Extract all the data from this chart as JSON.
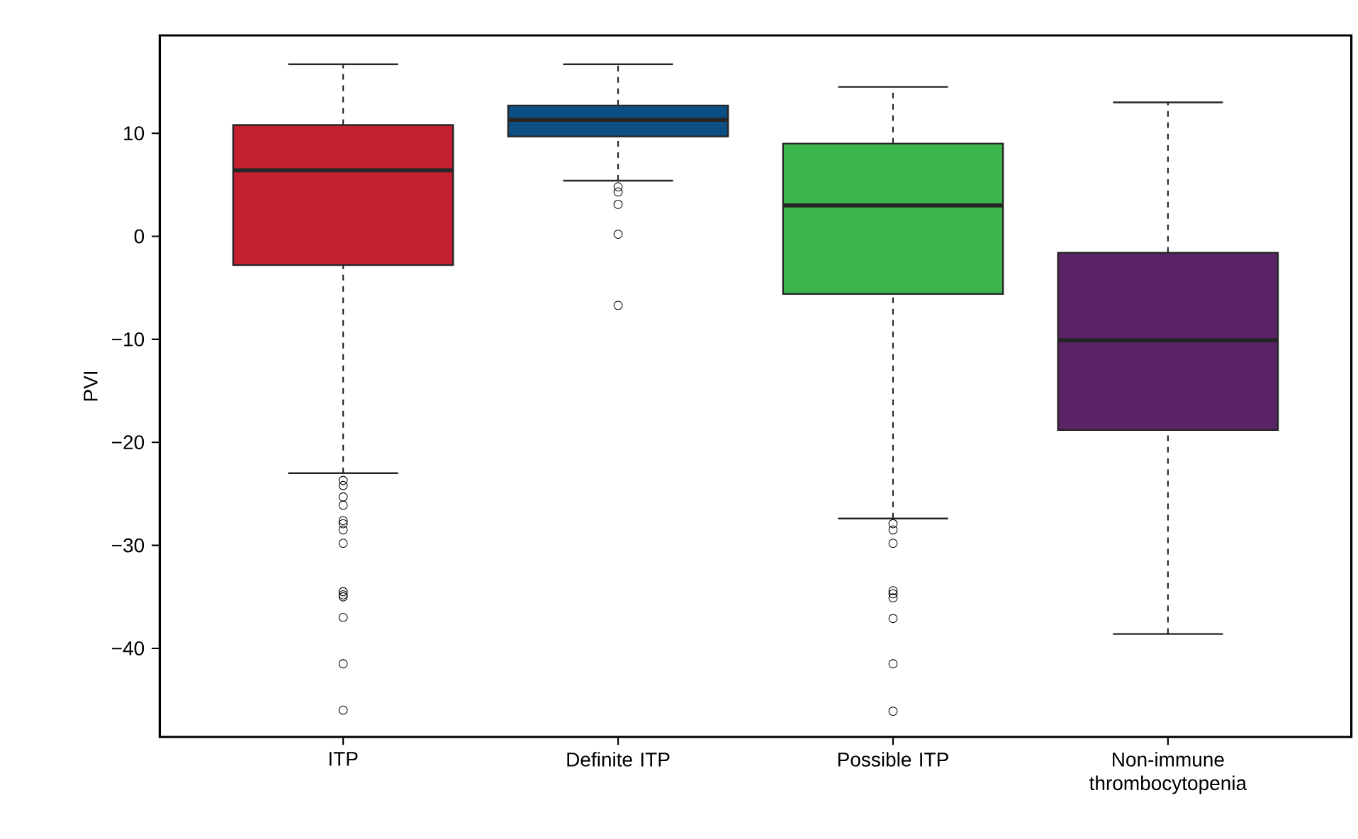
{
  "chart_data": {
    "type": "box",
    "ylabel": "PVI",
    "categories": [
      "ITP",
      "Definite ITP",
      "Possible ITP",
      "Non-immune thrombocytopenia"
    ],
    "colors": [
      "#c4202f",
      "#0b4f85",
      "#3cb54d",
      "#5c2468"
    ],
    "boxes": [
      {
        "low": -23.0,
        "q1": -2.8,
        "median": 6.4,
        "q3": 10.8,
        "high": 16.7,
        "outliers": [
          -23.7,
          -24.2,
          -25.3,
          -26.1,
          -27.6,
          -27.9,
          -28.5,
          -29.8,
          -34.5,
          -34.8,
          -35.0,
          -37.0,
          -41.5,
          -46.0
        ]
      },
      {
        "low": 5.4,
        "q1": 9.7,
        "median": 11.3,
        "q3": 12.7,
        "high": 16.7,
        "outliers": [
          4.8,
          4.3,
          3.1,
          0.2,
          -6.7
        ]
      },
      {
        "low": -27.4,
        "q1": -5.6,
        "median": 3.0,
        "q3": 9.0,
        "high": 14.5,
        "outliers": [
          -27.9,
          -28.5,
          -29.8,
          -34.4,
          -34.7,
          -35.1,
          -37.1,
          -41.5,
          -46.1
        ]
      },
      {
        "low": -38.6,
        "q1": -18.8,
        "median": -10.1,
        "q3": -1.6,
        "high": 13.0
      }
    ],
    "ylim": [
      -48.6,
      19.5
    ],
    "yticks": [
      {
        "value": -40,
        "label": "−40"
      },
      {
        "value": -30,
        "label": "−30"
      },
      {
        "value": -20,
        "label": "−20"
      },
      {
        "value": -10,
        "label": "−10"
      },
      0,
      10
    ],
    "grid": false,
    "legend": false,
    "marker": "circle"
  }
}
